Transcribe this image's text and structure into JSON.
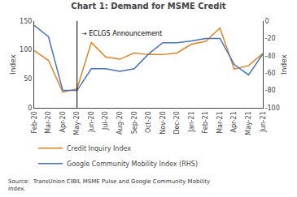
{
  "chart_data": {
    "type": "line",
    "title": "Chart 1: Demand for MSME Credit",
    "ylabel": "Index",
    "y2label": "Index",
    "source": "Source:  TransUnion CIBIL MSME Pulse and Google Community Mobility\nIndex.",
    "annotations": [
      {
        "text": "→ ECLGS Announcement",
        "x": "May-20",
        "y": 128
      }
    ],
    "categories": [
      "Feb-20",
      "Mar-20",
      "Apr-20",
      "May-20",
      "Jun-20",
      "Jul-20",
      "Aug-20",
      "Sep-20",
      "Oct-20",
      "Nov-20",
      "Dec-20",
      "Jan-21",
      "Feb-21",
      "Mar-21",
      "Apr-21",
      "May-21",
      "Jun-21"
    ],
    "series": [
      {
        "name": "Credit Inquiry Index",
        "color": "#E0821E",
        "values": [
          99,
          82,
          27,
          33,
          113,
          88,
          84,
          95,
          92,
          92,
          95,
          110,
          115,
          138,
          67,
          73,
          94
        ]
      },
      {
        "name": "Google Community Mobility Index (RHS)",
        "color": "#4472C4",
        "axis": "y2",
        "values": [
          -5,
          -18,
          -80,
          -80,
          -55,
          -55,
          -58,
          -55,
          -38,
          -25,
          -25,
          -23,
          -20,
          -20,
          -50,
          -62,
          -38
        ]
      }
    ],
    "ylim": [
      0,
      150
    ],
    "yticks": [
      0,
      50,
      100,
      150
    ],
    "y2lim": [
      -100,
      0
    ],
    "y2ticks": [
      0,
      -20,
      -40,
      -60,
      -80,
      -100
    ],
    "grid": false,
    "legend": "bottom"
  }
}
